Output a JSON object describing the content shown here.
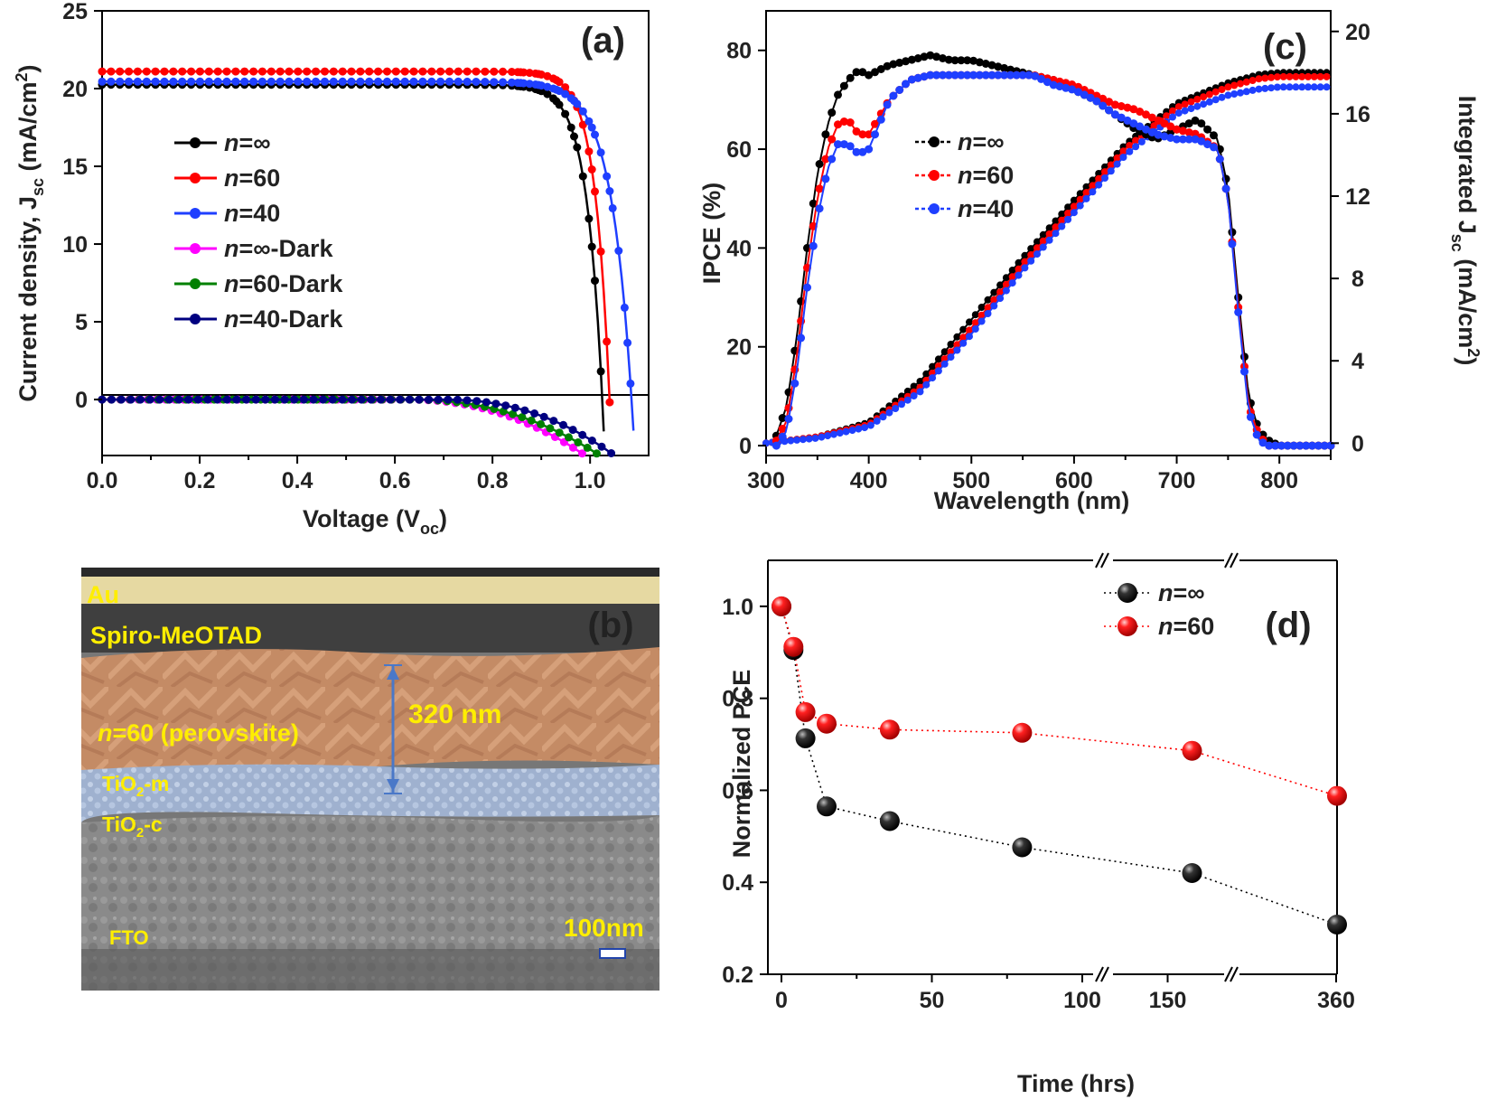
{
  "chart_data": [
    {
      "panel": "(a)",
      "type": "line",
      "xlabel": "Voltage (V",
      "xlabel_sub": "oc",
      "xlabel_end": ")",
      "ylabel": "Current density, J",
      "ylabel_sub": "sc",
      "ylabel_unit": " (mA/cm",
      "ylabel_sup": "2",
      "ylabel_end": ")",
      "xlim": [
        0.0,
        1.12
      ],
      "ylim": [
        -3.6,
        25
      ],
      "xticks": [
        "0.0",
        "0.2",
        "0.4",
        "0.6",
        "0.8",
        "1.0"
      ],
      "yticks": [
        "0",
        "5",
        "10",
        "15",
        "20",
        "25"
      ],
      "legend_position": "center-left",
      "series": [
        {
          "name_italic": "n",
          "name_rest": "=∞",
          "color": "#000000",
          "jsc": 20.25,
          "voc": 1.025,
          "curvature": 0.032
        },
        {
          "name_italic": "n",
          "name_rest": "=60",
          "color": "#ff0000",
          "jsc": 21.1,
          "voc": 1.04,
          "curvature": 0.03
        },
        {
          "name_italic": "n",
          "name_rest": "=40",
          "color": "#1f3fff",
          "jsc": 20.45,
          "voc": 1.085,
          "curvature": 0.042
        },
        {
          "name_italic": "n",
          "name_rest": "=∞-Dark",
          "color": "#ff00ff",
          "onset": 0.62,
          "end_v": 0.99
        },
        {
          "name_italic": "n",
          "name_rest": "=60-Dark",
          "color": "#008000",
          "onset": 0.63,
          "end_v": 1.02
        },
        {
          "name_italic": "n",
          "name_rest": "=40-Dark",
          "color": "#000080",
          "onset": 0.7,
          "end_v": 1.05
        }
      ]
    },
    {
      "panel": "(c)",
      "type": "line",
      "xlabel": "Wavelength (nm)",
      "ylabel_left": "IPCE (%)",
      "ylabel_right": "Integrated J",
      "ylabel_right_sub": "sc",
      "ylabel_right_unit": " (mA/cm",
      "ylabel_right_sup": "2",
      "ylabel_right_end": ")",
      "xlim": [
        300,
        850
      ],
      "ylim_left": [
        -2,
        88
      ],
      "ylim_right": [
        -0.6,
        21
      ],
      "xticks": [
        "300",
        "400",
        "500",
        "600",
        "700",
        "800"
      ],
      "yticks_left": [
        "0",
        "20",
        "40",
        "60",
        "80"
      ],
      "yticks_right": [
        "0",
        "4",
        "8",
        "12",
        "16",
        "20"
      ],
      "ipce_series": [
        {
          "name_italic": "n",
          "name_rest": "=∞",
          "color": "#000000",
          "x": [
            310,
            320,
            330,
            340,
            350,
            360,
            370,
            380,
            390,
            400,
            420,
            440,
            460,
            480,
            500,
            520,
            540,
            560,
            580,
            600,
            620,
            640,
            660,
            680,
            700,
            720,
            740,
            750,
            760,
            770,
            780,
            790,
            800,
            820,
            850
          ],
          "y": [
            2,
            8,
            22,
            40,
            55,
            65,
            71,
            74,
            76,
            75,
            77,
            78,
            79,
            78,
            78,
            77,
            76,
            75,
            74,
            72,
            70,
            67,
            64,
            62,
            64,
            66,
            62,
            52,
            30,
            10,
            3,
            1,
            0,
            0,
            0
          ]
        },
        {
          "name_italic": "n",
          "name_rest": "=60",
          "color": "#ff0000",
          "x": [
            310,
            320,
            330,
            340,
            350,
            360,
            370,
            380,
            390,
            400,
            420,
            440,
            460,
            480,
            500,
            520,
            540,
            560,
            580,
            600,
            620,
            640,
            660,
            680,
            700,
            720,
            740,
            750,
            760,
            770,
            780,
            790,
            800,
            820,
            850
          ],
          "y": [
            1,
            5,
            18,
            36,
            50,
            60,
            65,
            66,
            63,
            63,
            70,
            74,
            75,
            75,
            75,
            75,
            75,
            75,
            74,
            73,
            71,
            69,
            68,
            66,
            64,
            63,
            60,
            50,
            28,
            8,
            2,
            0,
            0,
            0,
            0
          ]
        },
        {
          "name_italic": "n",
          "name_rest": "=40",
          "color": "#1f3fff",
          "x": [
            310,
            320,
            330,
            340,
            350,
            360,
            370,
            380,
            390,
            400,
            420,
            440,
            460,
            480,
            500,
            520,
            540,
            560,
            580,
            600,
            620,
            640,
            660,
            680,
            700,
            720,
            740,
            750,
            760,
            770,
            780,
            790,
            800,
            820,
            850
          ],
          "y": [
            0,
            3,
            15,
            32,
            46,
            56,
            61,
            61,
            59,
            60,
            70,
            74,
            75,
            75,
            75,
            75,
            75,
            75,
            73,
            72,
            70,
            67,
            65,
            63,
            62,
            62,
            60,
            50,
            27,
            7,
            1,
            0,
            0,
            0,
            0
          ]
        }
      ],
      "jsc_series": [
        {
          "color": "#000000",
          "x": [
            300,
            350,
            400,
            450,
            500,
            550,
            600,
            650,
            700,
            750,
            780,
            800,
            850
          ],
          "y": [
            0,
            0.3,
            1.0,
            3.0,
            6.0,
            9.0,
            11.8,
            14.5,
            16.5,
            17.5,
            17.9,
            18.0,
            18.0
          ]
        },
        {
          "color": "#ff0000",
          "x": [
            300,
            350,
            400,
            450,
            500,
            550,
            600,
            650,
            700,
            750,
            780,
            800,
            850
          ],
          "y": [
            0,
            0.3,
            0.9,
            2.7,
            5.6,
            8.7,
            11.5,
            14.3,
            16.3,
            17.3,
            17.7,
            17.8,
            17.8
          ]
        },
        {
          "color": "#1f3fff",
          "x": [
            300,
            350,
            400,
            450,
            500,
            550,
            600,
            650,
            700,
            750,
            780,
            800,
            850
          ],
          "y": [
            0,
            0.25,
            0.8,
            2.5,
            5.3,
            8.4,
            11.2,
            14.0,
            16.0,
            16.9,
            17.2,
            17.3,
            17.3
          ]
        }
      ]
    },
    {
      "panel": "(d)",
      "type": "scatter",
      "xlabel": "Time (hrs)",
      "ylabel": "Normalized PCE",
      "ylim": [
        0.2,
        1.1
      ],
      "yticks": [
        "0.2",
        "0.4",
        "0.6",
        "0.8",
        "1.0"
      ],
      "xticks_segment1": [
        "0",
        "50",
        "100"
      ],
      "xticks_segment2": [
        "150"
      ],
      "xticks_segment3": [
        "360"
      ],
      "series": [
        {
          "name_italic": "n",
          "name_rest": "=∞",
          "color": "#000000",
          "time": [
            0,
            4,
            8,
            15,
            36,
            80,
            170,
            360
          ],
          "values": [
            1.0,
            0.905,
            0.713,
            0.565,
            0.533,
            0.476,
            0.42,
            0.308
          ]
        },
        {
          "name_italic": "n",
          "name_rest": "=60",
          "color": "#ff0000",
          "time": [
            0,
            4,
            8,
            15,
            36,
            80,
            170,
            360
          ],
          "values": [
            1.0,
            0.912,
            0.77,
            0.745,
            0.732,
            0.725,
            0.686,
            0.588
          ]
        }
      ]
    }
  ],
  "sem_image": {
    "panel": "(b)",
    "layers": [
      {
        "name": "Au",
        "color": "#e8d9a0"
      },
      {
        "name": "Spiro-MeOTAD",
        "color": "#3a3a3a"
      },
      {
        "name_italic": "n",
        "name_rest": "=60 (perovskite)",
        "color": "#c8906a"
      },
      {
        "name": "TiO",
        "sub": "2",
        "suffix": "-m",
        "color": "#9fb4d4"
      },
      {
        "name": "TiO",
        "sub": "2",
        "suffix": "-c",
        "color": "#8a8a8a"
      },
      {
        "name": "FTO",
        "color": "#7d7d7d"
      }
    ],
    "thickness_label": "320 nm",
    "scale_bar_label": "100nm",
    "arrow_color": "#4a78c8"
  }
}
